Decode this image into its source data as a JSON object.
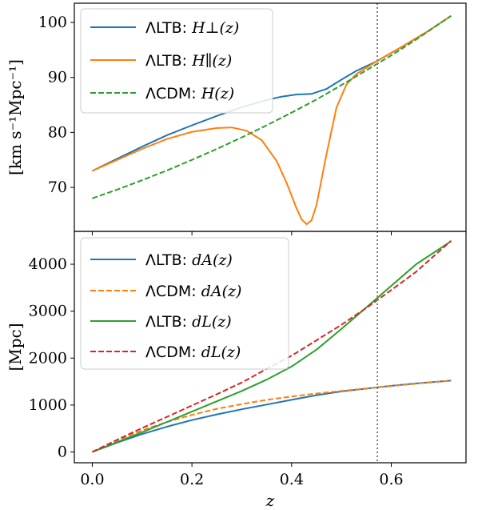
{
  "chart_data": [
    {
      "type": "line",
      "ylabel": "[km s⁻¹Mpc⁻¹]",
      "xlim": [
        -0.036,
        0.75
      ],
      "ylim": [
        62,
        103.5
      ],
      "yticks": [
        70,
        80,
        90,
        100
      ],
      "vline_x": 0.572,
      "legend_loc": "top-left",
      "series": [
        {
          "name_prefix": "ΛLTB: ",
          "name_math": "H⊥(z)",
          "color": "#1f77b4",
          "dash": "solid",
          "x": [
            0.0,
            0.05,
            0.1,
            0.15,
            0.2,
            0.25,
            0.3,
            0.35,
            0.38,
            0.41,
            0.44,
            0.47,
            0.5,
            0.53,
            0.57,
            0.62,
            0.67,
            0.72
          ],
          "y": [
            73.0,
            75.2,
            77.4,
            79.5,
            81.3,
            83.0,
            84.6,
            85.9,
            86.5,
            86.9,
            87.0,
            87.9,
            89.6,
            91.2,
            92.9,
            95.5,
            98.2,
            101.2
          ]
        },
        {
          "name_prefix": "ΛLTB: ",
          "name_math": "H∥(z)",
          "color": "#ff7f0e",
          "dash": "solid",
          "x": [
            0.0,
            0.05,
            0.1,
            0.15,
            0.2,
            0.25,
            0.28,
            0.31,
            0.34,
            0.37,
            0.39,
            0.41,
            0.42,
            0.43,
            0.44,
            0.45,
            0.47,
            0.49,
            0.51,
            0.53,
            0.57,
            0.62,
            0.67,
            0.72
          ],
          "y": [
            73.0,
            75.0,
            77.0,
            78.8,
            80.1,
            80.8,
            80.9,
            80.3,
            78.6,
            74.8,
            70.8,
            66.2,
            64.2,
            63.3,
            64.0,
            66.8,
            76.0,
            84.5,
            88.7,
            90.6,
            92.9,
            95.5,
            98.2,
            101.2
          ]
        },
        {
          "name_prefix": "ΛCDM: ",
          "name_math": "H(z)",
          "color": "#2ca02c",
          "dash": "dashed",
          "x": [
            0.0,
            0.05,
            0.1,
            0.15,
            0.2,
            0.25,
            0.3,
            0.35,
            0.4,
            0.45,
            0.5,
            0.55,
            0.6,
            0.65,
            0.72
          ],
          "y": [
            68.0,
            69.6,
            71.3,
            73.1,
            75.0,
            77.0,
            79.1,
            81.3,
            83.6,
            86.0,
            88.6,
            91.3,
            94.0,
            96.9,
            101.2
          ]
        }
      ]
    },
    {
      "type": "line",
      "xlabel": "z",
      "ylabel": "[Mpc]",
      "xlim": [
        -0.036,
        0.75
      ],
      "ylim": [
        -230,
        4700
      ],
      "xticks": [
        0.0,
        0.2,
        0.4,
        0.6
      ],
      "xtick_labels": [
        "0.0",
        "0.2",
        "0.4",
        "0.6"
      ],
      "yticks": [
        0,
        1000,
        2000,
        3000,
        4000
      ],
      "vline_x": 0.572,
      "legend_loc": "top-left",
      "series": [
        {
          "name_prefix": "ΛLTB: ",
          "name_math": "dA(z)",
          "color": "#1f77b4",
          "dash": "solid",
          "x": [
            0.0,
            0.05,
            0.1,
            0.15,
            0.2,
            0.25,
            0.3,
            0.35,
            0.4,
            0.45,
            0.5,
            0.55,
            0.6,
            0.65,
            0.72
          ],
          "y": [
            0,
            200,
            380,
            540,
            680,
            800,
            910,
            1010,
            1110,
            1210,
            1290,
            1350,
            1410,
            1460,
            1520
          ]
        },
        {
          "name_prefix": "ΛCDM: ",
          "name_math": "dA(z)",
          "color": "#ff7f0e",
          "dash": "dashed",
          "x": [
            0.0,
            0.05,
            0.1,
            0.15,
            0.2,
            0.25,
            0.3,
            0.35,
            0.4,
            0.45,
            0.5,
            0.55,
            0.6,
            0.65,
            0.72
          ],
          "y": [
            0,
            250,
            460,
            640,
            790,
            920,
            1020,
            1110,
            1180,
            1245,
            1300,
            1355,
            1405,
            1455,
            1520
          ]
        },
        {
          "name_prefix": "ΛLTB: ",
          "name_math": "dL(z)",
          "color": "#2ca02c",
          "dash": "solid",
          "x": [
            0.0,
            0.05,
            0.1,
            0.15,
            0.2,
            0.25,
            0.3,
            0.35,
            0.4,
            0.45,
            0.5,
            0.55,
            0.6,
            0.65,
            0.72
          ],
          "y": [
            0,
            210,
            420,
            640,
            860,
            1080,
            1300,
            1540,
            1820,
            2180,
            2620,
            3080,
            3540,
            4000,
            4490
          ]
        },
        {
          "name_prefix": "ΛCDM: ",
          "name_math": "dL(z)",
          "color": "#d62728",
          "dash": "dashed",
          "x": [
            0.0,
            0.05,
            0.1,
            0.15,
            0.2,
            0.25,
            0.3,
            0.35,
            0.4,
            0.45,
            0.5,
            0.55,
            0.6,
            0.65,
            0.72
          ],
          "y": [
            0,
            260,
            510,
            750,
            990,
            1230,
            1480,
            1770,
            2050,
            2380,
            2710,
            3070,
            3450,
            3840,
            4500
          ]
        }
      ]
    }
  ]
}
